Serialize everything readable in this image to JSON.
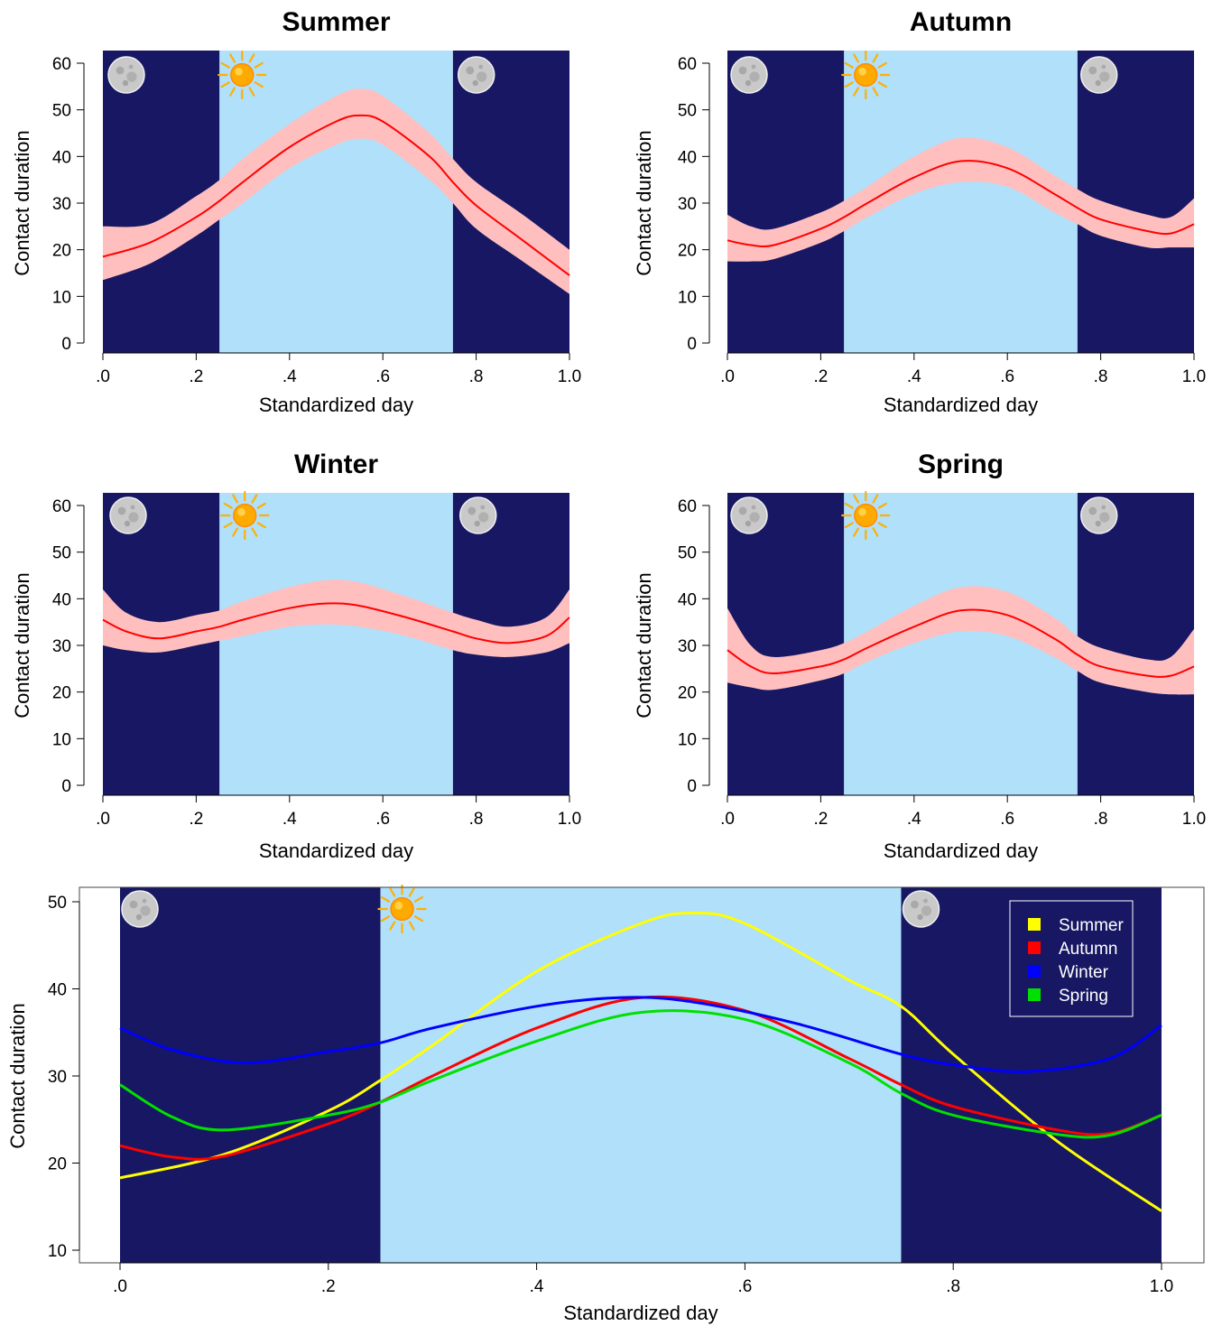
{
  "colors": {
    "night": "#171763",
    "day": "#b0e0fa",
    "band": "#ffbfbf",
    "line": "#ff0000",
    "Summer": "#ffff00",
    "Autumn": "#ff0000",
    "Winter": "#0000ff",
    "Spring": "#00e000"
  },
  "icons": {
    "night": "moon-icon",
    "day": "sun-icon"
  },
  "chart_data": [
    {
      "type": "line",
      "title": "Summer",
      "xlabel": "Standardized day",
      "ylabel": "Contact duration",
      "xlim": [
        0,
        1
      ],
      "ylim": [
        0,
        60
      ],
      "x_ticks": [
        ".0",
        ".2",
        ".4",
        ".6",
        ".8",
        "1.0"
      ],
      "y_ticks": [
        "0",
        "10",
        "20",
        "30",
        "40",
        "50",
        "60"
      ],
      "night_periods": [
        [
          0,
          0.25
        ],
        [
          0.75,
          1.0
        ]
      ],
      "day_period": [
        0.25,
        0.75
      ],
      "x": [
        0,
        0.1,
        0.2,
        0.25,
        0.3,
        0.4,
        0.5,
        0.55,
        0.6,
        0.7,
        0.75,
        0.8,
        0.9,
        1.0
      ],
      "y": [
        18.5,
        21.5,
        27,
        30.5,
        34.5,
        42,
        47.5,
        48.8,
        47.5,
        40,
        34.5,
        29.5,
        22,
        14.5
      ],
      "lower": [
        13.5,
        17,
        23,
        26.5,
        30,
        37.5,
        42.5,
        43.8,
        42.5,
        35,
        30,
        24.5,
        17.5,
        10.5
      ],
      "upper": [
        25,
        25.5,
        31.5,
        35,
        39.5,
        47,
        53,
        54.5,
        53,
        45,
        39.5,
        34.5,
        27.5,
        20
      ]
    },
    {
      "type": "line",
      "title": "Autumn",
      "xlabel": "Standardized day",
      "ylabel": "Contact duration",
      "xlim": [
        0,
        1
      ],
      "ylim": [
        0,
        60
      ],
      "x_ticks": [
        ".0",
        ".2",
        ".4",
        ".6",
        ".8",
        "1.0"
      ],
      "y_ticks": [
        "0",
        "10",
        "20",
        "30",
        "40",
        "50",
        "60"
      ],
      "night_periods": [
        [
          0,
          0.25
        ],
        [
          0.75,
          1.0
        ]
      ],
      "day_period": [
        0.25,
        0.75
      ],
      "x": [
        0,
        0.05,
        0.1,
        0.2,
        0.25,
        0.3,
        0.4,
        0.5,
        0.6,
        0.7,
        0.75,
        0.8,
        0.9,
        0.95,
        1.0
      ],
      "y": [
        22,
        21,
        21,
        24.5,
        27,
        30,
        35.5,
        39,
        37.5,
        32,
        29,
        26.5,
        24,
        23.5,
        25.5
      ],
      "lower": [
        17.5,
        17.5,
        18,
        21.5,
        24,
        27,
        32,
        34.5,
        33.5,
        28,
        25.5,
        23,
        20.5,
        20.5,
        20.5
      ],
      "upper": [
        27.5,
        25,
        24.5,
        28,
        30.5,
        33.5,
        40,
        44,
        42,
        36,
        33,
        30.5,
        27.5,
        27,
        31
      ]
    },
    {
      "type": "line",
      "title": "Winter",
      "xlabel": "Standardized day",
      "ylabel": "Contact duration",
      "xlim": [
        0,
        1
      ],
      "ylim": [
        0,
        60
      ],
      "x_ticks": [
        ".0",
        ".2",
        ".4",
        ".6",
        ".8",
        "1.0"
      ],
      "y_ticks": [
        "0",
        "10",
        "20",
        "30",
        "40",
        "50",
        "60"
      ],
      "night_periods": [
        [
          0,
          0.25
        ],
        [
          0.75,
          1.0
        ]
      ],
      "day_period": [
        0.25,
        0.75
      ],
      "x": [
        0,
        0.05,
        0.12,
        0.2,
        0.25,
        0.3,
        0.4,
        0.48,
        0.55,
        0.65,
        0.75,
        0.8,
        0.87,
        0.95,
        1.0
      ],
      "y": [
        35.5,
        33,
        31.5,
        33,
        34,
        35.5,
        38,
        39,
        38.5,
        36,
        33,
        31.5,
        30.5,
        32,
        36
      ],
      "lower": [
        30,
        29,
        28.5,
        30,
        31,
        32,
        34,
        34.5,
        34,
        32,
        29,
        28,
        27.5,
        28.5,
        30.5
      ],
      "upper": [
        42,
        37,
        35,
        36.5,
        37.5,
        39.5,
        42.5,
        44,
        43.5,
        40.5,
        37,
        35.5,
        34,
        36,
        42
      ]
    },
    {
      "type": "line",
      "title": "Spring",
      "xlabel": "Standardized day",
      "ylabel": "Contact duration",
      "xlim": [
        0,
        1
      ],
      "ylim": [
        0,
        60
      ],
      "x_ticks": [
        ".0",
        ".2",
        ".4",
        ".6",
        ".8",
        "1.0"
      ],
      "y_ticks": [
        "0",
        "10",
        "20",
        "30",
        "40",
        "50",
        "60"
      ],
      "night_periods": [
        [
          0,
          0.25
        ],
        [
          0.75,
          1.0
        ]
      ],
      "day_period": [
        0.25,
        0.75
      ],
      "x": [
        0,
        0.05,
        0.1,
        0.2,
        0.25,
        0.3,
        0.4,
        0.5,
        0.6,
        0.7,
        0.75,
        0.8,
        0.9,
        0.95,
        1.0
      ],
      "y": [
        29,
        25.5,
        24,
        25.5,
        27,
        29.5,
        34,
        37.5,
        36.5,
        31.5,
        28,
        25.5,
        23.5,
        23.5,
        25.5
      ],
      "lower": [
        22,
        21,
        20.5,
        22.5,
        24,
        26.5,
        30.5,
        33,
        32,
        27.5,
        24.5,
        22,
        20,
        19.5,
        19.5
      ],
      "upper": [
        38,
        30,
        27.5,
        29,
        30.5,
        33,
        38.5,
        42.5,
        41.5,
        36,
        32,
        29.5,
        27,
        27.5,
        33.5
      ]
    },
    {
      "type": "line",
      "title": "",
      "xlabel": "Standardized day",
      "ylabel": "Contact duration",
      "xlim": [
        0,
        1
      ],
      "ylim": [
        10,
        50
      ],
      "x_ticks": [
        ".0",
        ".2",
        ".4",
        ".6",
        ".8",
        "1.0"
      ],
      "y_ticks": [
        "10",
        "20",
        "30",
        "40",
        "50"
      ],
      "night_periods": [
        [
          0,
          0.25
        ],
        [
          0.75,
          1.0
        ]
      ],
      "day_period": [
        0.25,
        0.75
      ],
      "legend_position": "top-right",
      "series": [
        {
          "name": "Summer",
          "x": [
            0,
            0.1,
            0.2,
            0.25,
            0.3,
            0.4,
            0.5,
            0.55,
            0.6,
            0.7,
            0.75,
            0.8,
            0.9,
            1.0
          ],
          "values": [
            18.3,
            21,
            26,
            29.5,
            33.5,
            42,
            47.5,
            48.7,
            47.5,
            41,
            38,
            32.5,
            22.5,
            14.5
          ]
        },
        {
          "name": "Autumn",
          "x": [
            0,
            0.05,
            0.1,
            0.2,
            0.25,
            0.3,
            0.4,
            0.5,
            0.6,
            0.7,
            0.75,
            0.8,
            0.9,
            0.95,
            1.0
          ],
          "values": [
            22,
            20.7,
            20.8,
            24.5,
            27,
            30,
            35.5,
            39,
            37.5,
            32,
            29,
            26.5,
            23.8,
            23.4,
            25.5
          ]
        },
        {
          "name": "Winter",
          "x": [
            0,
            0.05,
            0.12,
            0.2,
            0.25,
            0.3,
            0.4,
            0.48,
            0.55,
            0.65,
            0.75,
            0.8,
            0.87,
            0.95,
            1.0
          ],
          "values": [
            35.5,
            33,
            31.5,
            32.8,
            33.8,
            35.5,
            38,
            39,
            38.5,
            36,
            32.5,
            31.3,
            30.5,
            32,
            35.8
          ]
        },
        {
          "name": "Spring",
          "x": [
            0,
            0.05,
            0.1,
            0.2,
            0.25,
            0.3,
            0.4,
            0.5,
            0.6,
            0.7,
            0.75,
            0.8,
            0.9,
            0.95,
            1.0
          ],
          "values": [
            29,
            25.3,
            23.8,
            25.5,
            27,
            29.5,
            34,
            37.3,
            36.5,
            31.5,
            28,
            25.5,
            23.3,
            23.2,
            25.5
          ]
        }
      ]
    }
  ]
}
